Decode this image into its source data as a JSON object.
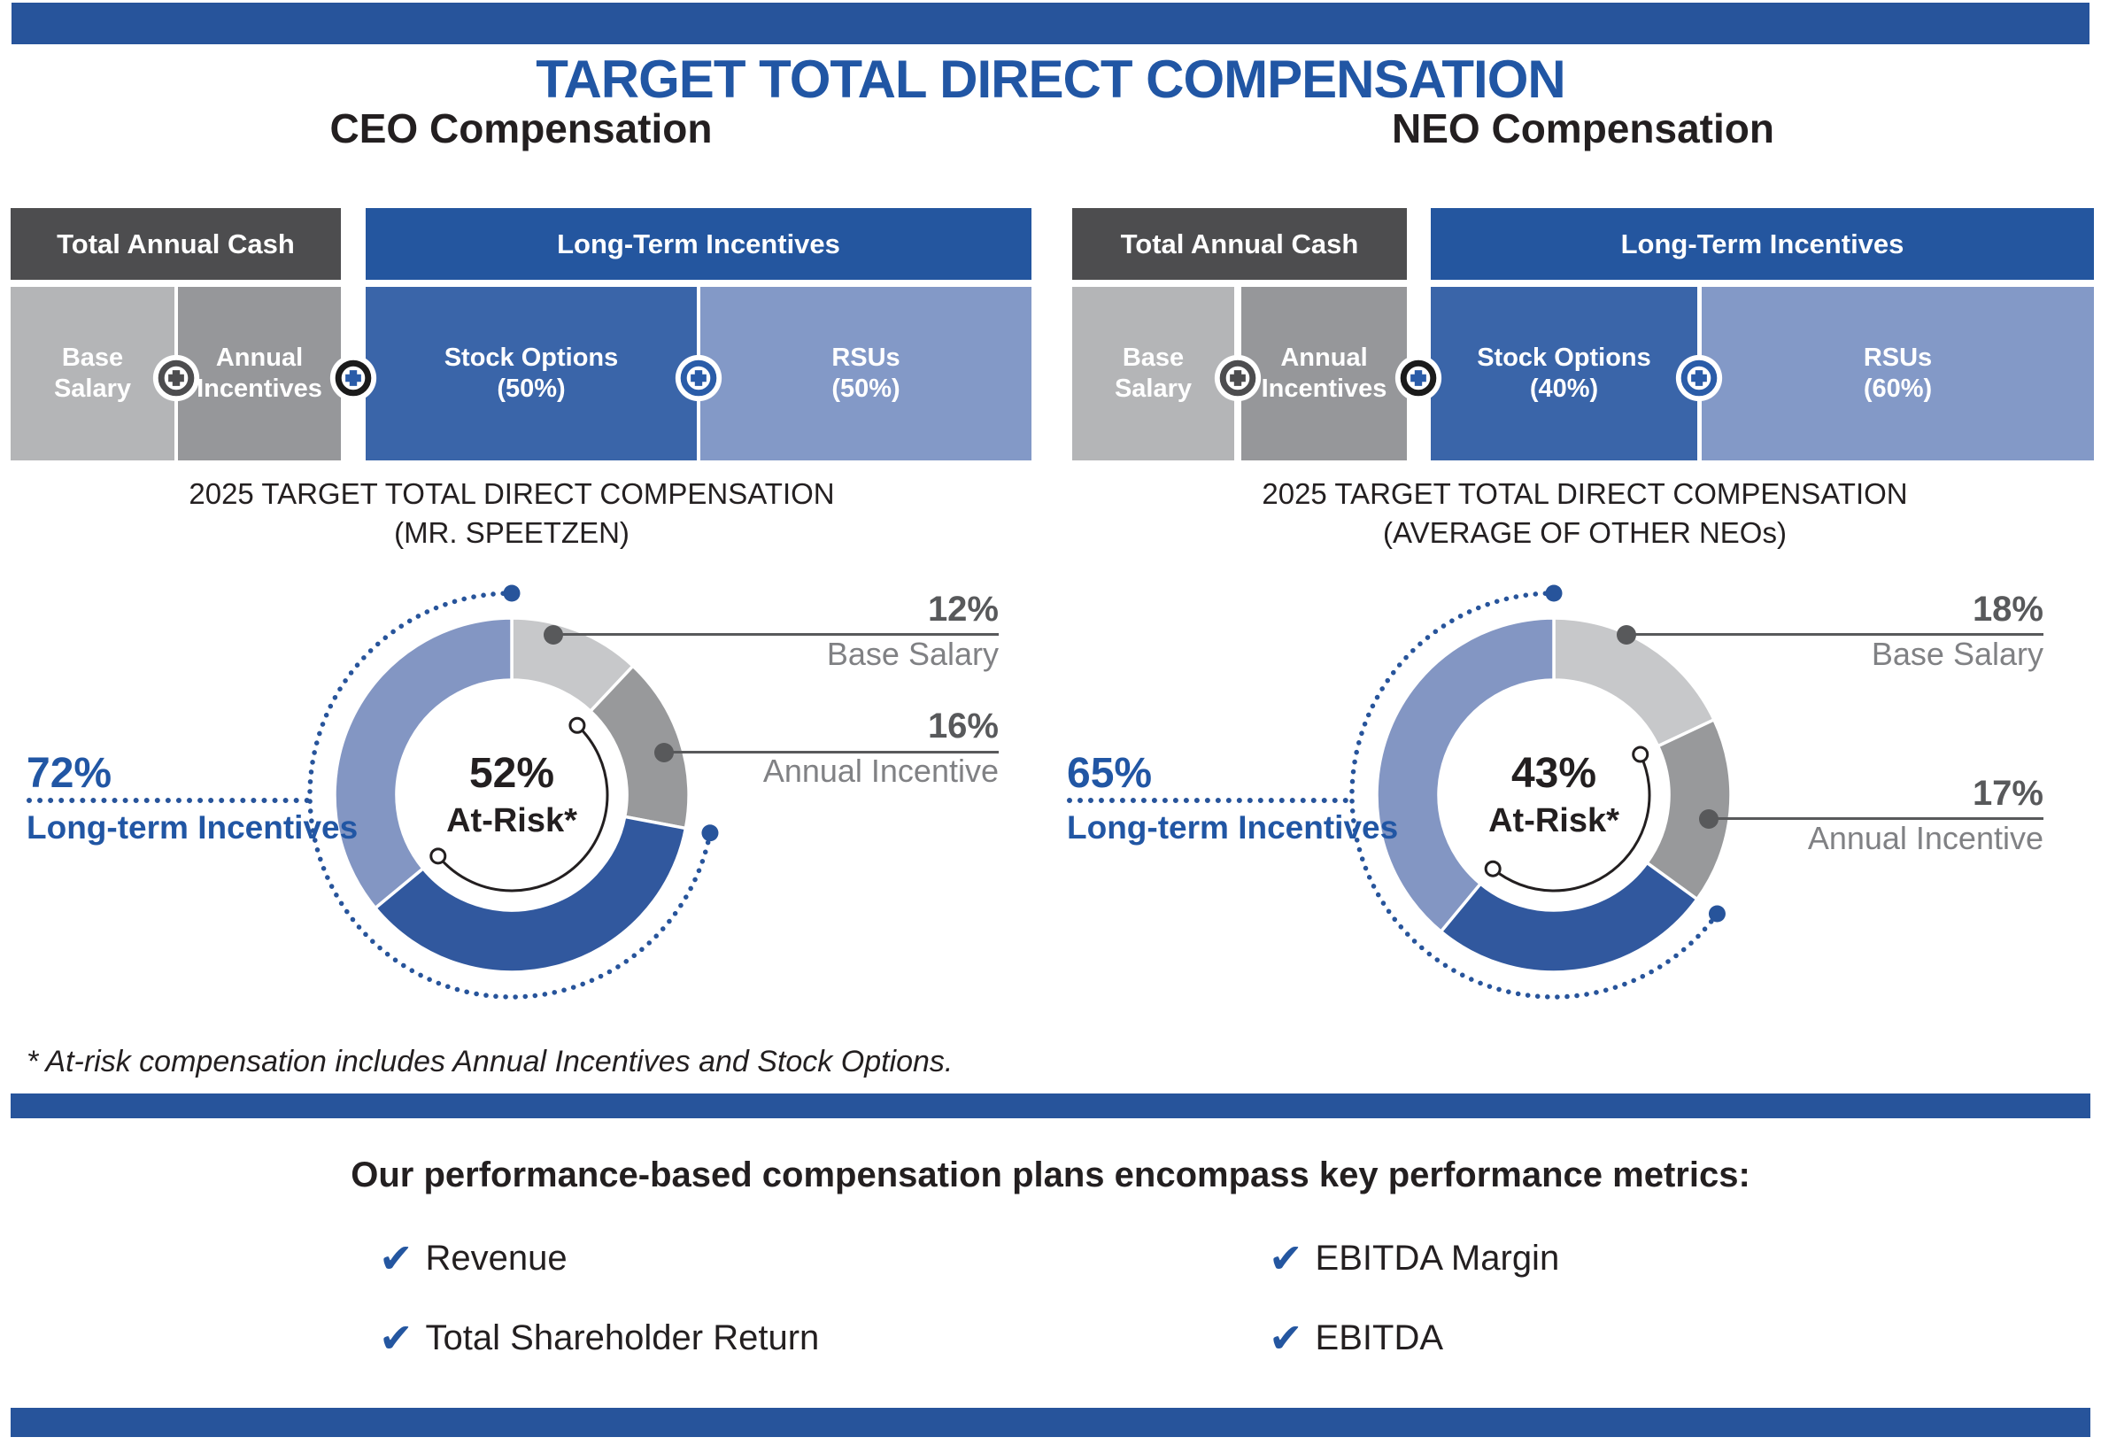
{
  "title": "TARGET TOTAL DIRECT COMPENSATION",
  "colors": {
    "accent_blue": "#27549B",
    "title_blue": "#2156A4",
    "header_gray": "#4D4D4F",
    "base_salary_gray": "#B4B5B7",
    "annual_incentive_gray": "#96979A",
    "stock_options_blue": "#3A65A9",
    "rsus_periwinkle": "#8399C7",
    "callout_line_gray": "#58595B"
  },
  "icons": {
    "plus": "plus-icon",
    "check": "check-icon"
  },
  "panels": [
    {
      "title": "CEO Compensation",
      "cash_header": "Total Annual Cash",
      "lti_header": "Long-Term Incentives",
      "segments": {
        "base_1": "Base",
        "base_2": "Salary",
        "annual_1": "Annual",
        "annual_2": "Incentives",
        "so_1": "Stock Options",
        "so_2": "(50%)",
        "rsu_1": "RSUs",
        "rsu_2": "(50%)"
      },
      "caption_line1": "2025 TARGET TOTAL DIRECT COMPENSATION",
      "caption_line2": "(MR. SPEETZEN)",
      "lti_callout": {
        "pct": "72%",
        "label": "Long-term Incentives"
      },
      "center": {
        "pct": "52%",
        "label": "At-Risk*"
      },
      "callouts": [
        {
          "pct": "12%",
          "label": "Base Salary"
        },
        {
          "pct": "16%",
          "label": "Annual Incentive"
        }
      ]
    },
    {
      "title": "NEO Compensation",
      "cash_header": "Total Annual Cash",
      "lti_header": "Long-Term Incentives",
      "segments": {
        "base_1": "Base",
        "base_2": "Salary",
        "annual_1": "Annual",
        "annual_2": "Incentives",
        "so_1": "Stock Options",
        "so_2": "(40%)",
        "rsu_1": "RSUs",
        "rsu_2": "(60%)"
      },
      "caption_line1": "2025 TARGET TOTAL DIRECT COMPENSATION",
      "caption_line2": "(AVERAGE OF OTHER NEOs)",
      "lti_callout": {
        "pct": "65%",
        "label": "Long-term Incentives"
      },
      "center": {
        "pct": "43%",
        "label": "At-Risk*"
      },
      "callouts": [
        {
          "pct": "18%",
          "label": "Base Salary"
        },
        {
          "pct": "17%",
          "label": "Annual Incentive"
        }
      ]
    }
  ],
  "footnote": "* At-risk compensation includes Annual Incentives and Stock Options.",
  "metrics_heading": "Our performance-based compensation plans encompass key performance metrics:",
  "metrics": [
    "Revenue",
    "Total Shareholder Return",
    "EBITDA Margin",
    "EBITDA"
  ],
  "chart_data": [
    {
      "type": "donut",
      "title": "2025 TARGET TOTAL DIRECT COMPENSATION (MR. SPEETZEN)",
      "series": [
        {
          "name": "Base Salary",
          "value": 12,
          "color": "#C7C8CA"
        },
        {
          "name": "Annual Incentive",
          "value": 16,
          "color": "#98999B"
        },
        {
          "name": "Stock Options",
          "value": 36,
          "color": "#31589E"
        },
        {
          "name": "RSUs",
          "value": 36,
          "color": "#8396C3"
        }
      ],
      "annotations": {
        "at_risk_center": "52% At-Risk*",
        "long_term_incentives": "72%",
        "at_risk_arc_covers": [
          "Annual Incentive",
          "Stock Options"
        ],
        "dotted_arc_covers": [
          "Stock Options",
          "RSUs"
        ]
      }
    },
    {
      "type": "donut",
      "title": "2025 TARGET TOTAL DIRECT COMPENSATION (AVERAGE OF OTHER NEOs)",
      "series": [
        {
          "name": "Base Salary",
          "value": 18,
          "color": "#C7C8CA"
        },
        {
          "name": "Annual Incentive",
          "value": 17,
          "color": "#98999B"
        },
        {
          "name": "Stock Options",
          "value": 26,
          "color": "#31589E"
        },
        {
          "name": "RSUs",
          "value": 39,
          "color": "#8396C3"
        }
      ],
      "annotations": {
        "at_risk_center": "43% At-Risk*",
        "long_term_incentives": "65%",
        "at_risk_arc_covers": [
          "Annual Incentive",
          "Stock Options"
        ],
        "dotted_arc_covers": [
          "Stock Options",
          "RSUs"
        ]
      }
    }
  ]
}
